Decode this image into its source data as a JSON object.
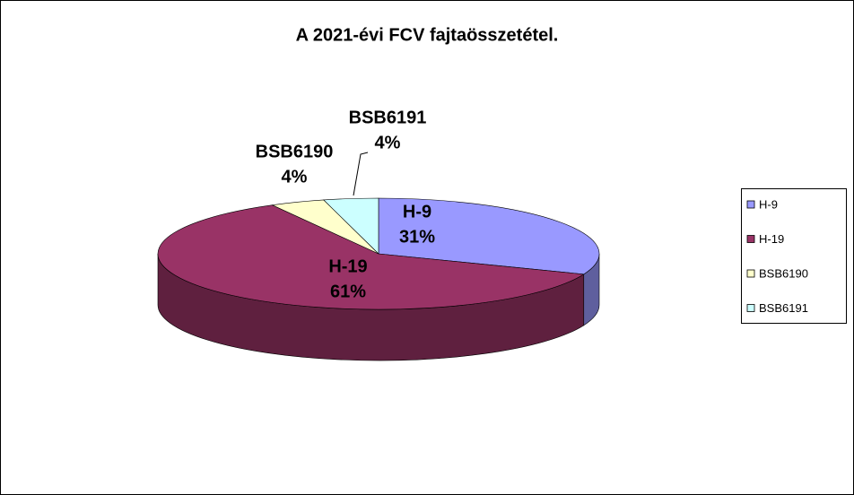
{
  "chart_data": {
    "type": "pie",
    "title": "A 2021-évi FCV fajtaösszetétel.",
    "categories": [
      "H-9",
      "H-19",
      "BSB6190",
      "BSB6191"
    ],
    "values": [
      31,
      61,
      4,
      4
    ],
    "value_labels": [
      "31%",
      "61%",
      "4%",
      "4%"
    ],
    "colors": [
      "#9999ff",
      "#993366",
      "#ffffcc",
      "#ccffff"
    ],
    "legend": "right"
  }
}
